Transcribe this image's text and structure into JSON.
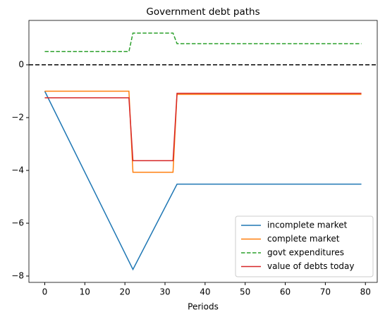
{
  "chart_data": {
    "type": "line",
    "title": "Government debt paths",
    "xlabel": "Periods",
    "xlim": [
      -3.95,
      82.95
    ],
    "ylim": [
      -8.24,
      1.68
    ],
    "xticks": [
      0,
      10,
      20,
      30,
      40,
      50,
      60,
      70,
      80
    ],
    "yticks": [
      {
        "value": -8,
        "label": "−8"
      },
      {
        "value": -6,
        "label": "−6"
      },
      {
        "value": -4,
        "label": "−4"
      },
      {
        "value": -2,
        "label": "−2"
      },
      0
    ],
    "hline": 0,
    "hline_color": "#000000",
    "legend": "lower right",
    "grid": false,
    "series": [
      {
        "name": "incomplete market",
        "color": "#1f77b4",
        "dash": false,
        "x": [
          0,
          22,
          33,
          79
        ],
        "values": [
          -1,
          -7.75,
          -4.52,
          -4.52
        ]
      },
      {
        "name": "complete market",
        "color": "#ff7f0e",
        "dash": false,
        "x": [
          0,
          21,
          22,
          32,
          33,
          79
        ],
        "values": [
          -1,
          -1,
          -4.07,
          -4.07,
          -1.12,
          -1.12
        ]
      },
      {
        "name": "govt expenditures",
        "color": "#2ca02c",
        "dash": true,
        "x": [
          0,
          21,
          22,
          32,
          33,
          79
        ],
        "values": [
          0.5,
          0.5,
          1.2,
          1.2,
          0.8,
          0.8
        ]
      },
      {
        "name": "value of debts today",
        "color": "#d62728",
        "dash": false,
        "x": [
          0,
          21,
          22,
          32,
          33,
          79
        ],
        "values": [
          -1.25,
          -1.25,
          -3.63,
          -3.63,
          -1.08,
          -1.08
        ]
      }
    ]
  }
}
